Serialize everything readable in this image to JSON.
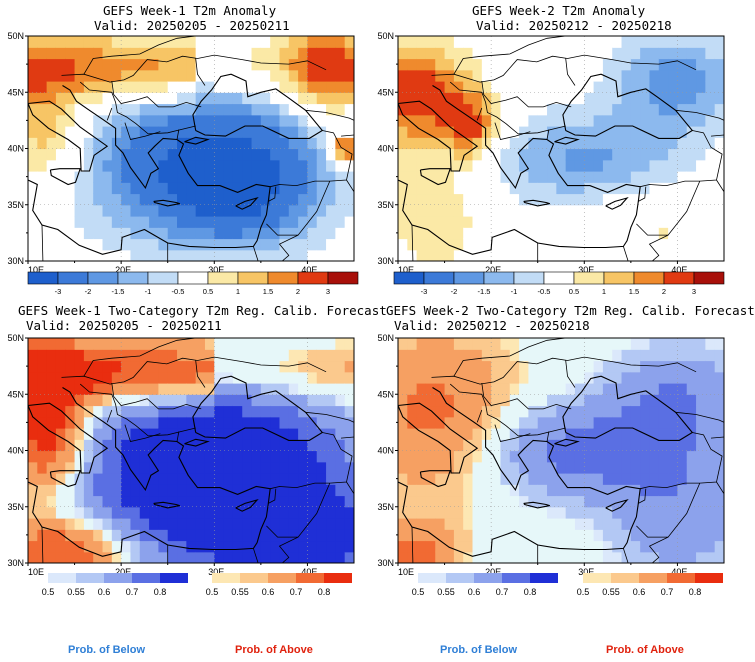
{
  "panels": [
    {
      "id": "p1",
      "title": "GEFS Week-1 T2m Anomaly",
      "valid": "Valid: 20250205 - 20250211",
      "kind": "anomaly",
      "lat_labels": [
        "50N",
        "45N",
        "40N",
        "35N",
        "30N"
      ],
      "lon_labels": [
        "10E",
        "20E",
        "30E",
        "40E"
      ]
    },
    {
      "id": "p2",
      "title": "GEFS Week-2 T2m Anomaly",
      "valid": "Valid: 20250212 - 20250218",
      "kind": "anomaly",
      "lat_labels": [
        "50N",
        "45N",
        "40N",
        "35N",
        "30N"
      ],
      "lon_labels": [
        "10E",
        "20E",
        "30E",
        "40E"
      ]
    },
    {
      "id": "p3",
      "title": "GEFS Week-1 Two-Category T2m Reg. Calib. Forecast",
      "valid": "Valid: 20250205 - 20250211",
      "kind": "probability",
      "lat_labels": [
        "50N",
        "45N",
        "40N",
        "35N",
        "30N"
      ],
      "lon_labels": [
        "10E",
        "20E",
        "30E",
        "40E"
      ]
    },
    {
      "id": "p4",
      "title": "GEFS Week-2 Two-Category T2m Reg. Calib. Forecast",
      "valid": "Valid: 20250212 - 20250218",
      "kind": "probability",
      "lat_labels": [
        "50N",
        "45N",
        "40N",
        "35N",
        "30N"
      ],
      "lon_labels": [
        "10E",
        "20E",
        "30E",
        "40E"
      ]
    }
  ],
  "anomaly_colorbar": {
    "labels": [
      "-3",
      "-2",
      "-1.5",
      "-1",
      "-0.5",
      "0.5",
      "1",
      "1.5",
      "2",
      "3"
    ],
    "colors": [
      "#1e5fcc",
      "#3c7ad8",
      "#5f98e3",
      "#8cb9ee",
      "#c2dcf6",
      "#ffffff",
      "#fbe9a6",
      "#f7c565",
      "#ef8a2d",
      "#e03a12",
      "#a8100a"
    ]
  },
  "prob_below_colorbar": {
    "labels": [
      "0.5",
      "0.55",
      "0.6",
      "0.7",
      "0.8"
    ],
    "colors": [
      "#dbe8fb",
      "#b3c8f4",
      "#8ca2ec",
      "#5a6fe3",
      "#1f2fd6"
    ]
  },
  "prob_above_colorbar": {
    "labels": [
      "0.5",
      "0.55",
      "0.6",
      "0.7",
      "0.8"
    ],
    "colors": [
      "#fde7b3",
      "#fbc98d",
      "#f6a062",
      "#f16a33",
      "#e92d0f"
    ]
  },
  "footer": {
    "below": "Prob. of Below",
    "above": "Prob. of Above"
  }
}
